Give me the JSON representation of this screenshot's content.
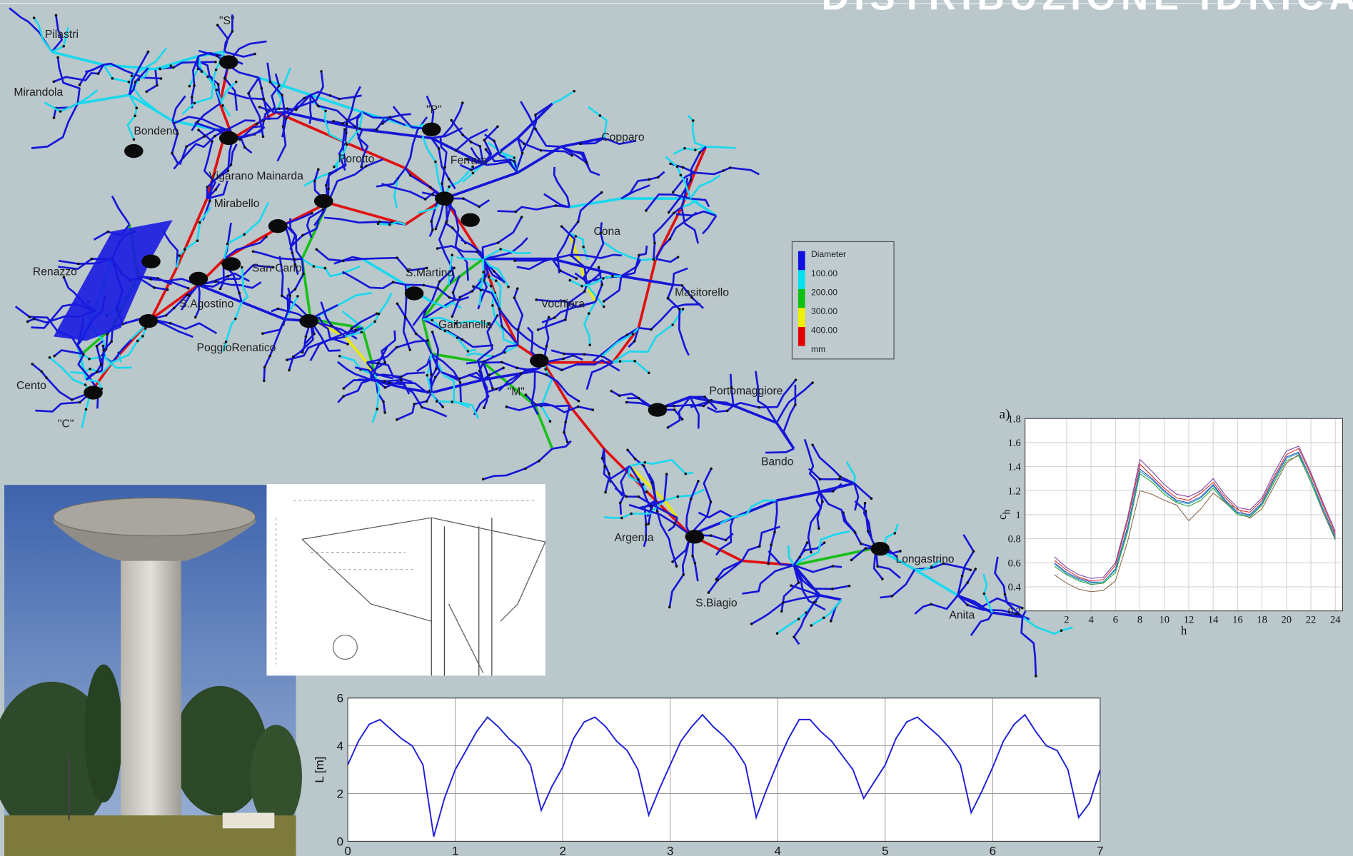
{
  "title": "DISTRIBUZIONE IDRICA",
  "map": {
    "labels": [
      "Pilastri",
      "\"S\"",
      "Mirandola",
      "Bondeno",
      "\"P\"",
      "Copparo",
      "Porotto",
      "Ferrara",
      "Vigarano Mainarda",
      "Mirabello",
      "Cona",
      "Renazzo",
      "San Carlo",
      "S.Martino",
      "Masitorello",
      "S.Agostino",
      "Vochiera",
      "Gaibanella",
      "PoggioRenatico",
      "Cento",
      "\"M\"",
      "Portomaggiore",
      "\"C\"",
      "Bando",
      "Argenta",
      "Longastrino",
      "S.Biagio",
      "Anita"
    ],
    "legend": {
      "title": "Diameter",
      "items": [
        "100.00",
        "200.00",
        "300.00",
        "400.00"
      ],
      "unit": "mm",
      "colors": [
        "#1010e0",
        "#00e0f0",
        "#10c010",
        "#f0f000",
        "#e00000"
      ]
    }
  },
  "chart_data": [
    {
      "type": "line",
      "panel_label": "a)",
      "xlabel": "h",
      "ylabel": {
        "text": "c",
        "subscript": "h"
      },
      "x": [
        1,
        2,
        3,
        4,
        5,
        6,
        7,
        8,
        9,
        10,
        11,
        12,
        13,
        14,
        15,
        16,
        17,
        18,
        19,
        20,
        21,
        22,
        23,
        24
      ],
      "series": [
        {
          "color": "#3050c0",
          "values": [
            0.6,
            0.52,
            0.47,
            0.44,
            0.44,
            0.55,
            0.9,
            1.38,
            1.3,
            1.2,
            1.12,
            1.1,
            1.15,
            1.25,
            1.12,
            1.02,
            1.0,
            1.1,
            1.3,
            1.48,
            1.52,
            1.3,
            1.05,
            0.82
          ]
        },
        {
          "color": "#d03030",
          "values": [
            0.62,
            0.54,
            0.48,
            0.45,
            0.46,
            0.58,
            0.95,
            1.42,
            1.32,
            1.22,
            1.14,
            1.12,
            1.18,
            1.27,
            1.14,
            1.04,
            1.02,
            1.12,
            1.32,
            1.5,
            1.55,
            1.33,
            1.08,
            0.84
          ]
        },
        {
          "color": "#30a040",
          "values": [
            0.57,
            0.5,
            0.45,
            0.42,
            0.43,
            0.52,
            0.86,
            1.34,
            1.27,
            1.17,
            1.1,
            1.07,
            1.12,
            1.22,
            1.1,
            1.0,
            0.98,
            1.08,
            1.27,
            1.45,
            1.49,
            1.27,
            1.02,
            0.79
          ]
        },
        {
          "color": "#8a6a50",
          "values": [
            0.5,
            0.43,
            0.38,
            0.36,
            0.37,
            0.45,
            0.78,
            1.2,
            1.17,
            1.12,
            1.08,
            0.95,
            1.05,
            1.18,
            1.1,
            1.05,
            0.97,
            1.05,
            1.24,
            1.43,
            1.5,
            1.3,
            1.02,
            0.8
          ]
        },
        {
          "color": "#8040a0",
          "values": [
            0.65,
            0.56,
            0.5,
            0.47,
            0.48,
            0.6,
            0.98,
            1.46,
            1.36,
            1.25,
            1.17,
            1.15,
            1.2,
            1.3,
            1.16,
            1.06,
            1.04,
            1.14,
            1.35,
            1.53,
            1.57,
            1.35,
            1.1,
            0.86
          ]
        },
        {
          "color": "#20a0b0",
          "values": [
            0.59,
            0.51,
            0.46,
            0.43,
            0.44,
            0.54,
            0.88,
            1.36,
            1.29,
            1.19,
            1.11,
            1.09,
            1.14,
            1.24,
            1.11,
            1.01,
            0.99,
            1.09,
            1.29,
            1.47,
            1.51,
            1.29,
            1.04,
            0.81
          ]
        }
      ],
      "xlim": [
        -1.4,
        24.6
      ],
      "ylim": [
        0.2,
        1.8
      ],
      "xticks": [
        2,
        4,
        6,
        8,
        10,
        12,
        14,
        16,
        18,
        20,
        22,
        24
      ],
      "yticks": [
        0.2,
        0.4,
        0.6,
        0.8,
        1,
        1.2,
        1.4,
        1.6,
        1.8
      ],
      "grid": true
    },
    {
      "type": "line",
      "ylabel": "L [m]",
      "x": [
        0,
        0.1,
        0.2,
        0.3,
        0.4,
        0.5,
        0.6,
        0.7,
        0.8,
        0.9,
        1.0,
        1.1,
        1.2,
        1.3,
        1.4,
        1.5,
        1.6,
        1.7,
        1.8,
        1.9,
        2.0,
        2.1,
        2.2,
        2.3,
        2.4,
        2.5,
        2.6,
        2.7,
        2.8,
        2.9,
        3.0,
        3.1,
        3.2,
        3.3,
        3.4,
        3.5,
        3.6,
        3.7,
        3.8,
        3.9,
        4.0,
        4.1,
        4.2,
        4.3,
        4.4,
        4.5,
        4.6,
        4.7,
        4.8,
        4.9,
        5.0,
        5.1,
        5.2,
        5.3,
        5.4,
        5.5,
        5.6,
        5.7,
        5.8,
        5.9,
        6.0,
        6.1,
        6.2,
        6.3,
        6.4,
        6.5,
        6.6,
        6.7,
        6.8,
        6.9,
        7.0
      ],
      "series": [
        {
          "color": "#1f1fd8",
          "values": [
            3.2,
            4.2,
            4.9,
            5.1,
            4.7,
            4.3,
            4.0,
            3.2,
            0.2,
            1.8,
            3.0,
            3.8,
            4.6,
            5.2,
            4.8,
            4.3,
            3.9,
            3.2,
            1.3,
            2.3,
            3.1,
            4.3,
            5.0,
            5.2,
            4.8,
            4.2,
            3.8,
            3.0,
            1.1,
            2.2,
            3.2,
            4.2,
            4.8,
            5.3,
            4.8,
            4.4,
            3.9,
            3.2,
            1.0,
            2.2,
            3.3,
            4.3,
            5.1,
            5.1,
            4.6,
            4.2,
            3.6,
            3.0,
            1.8,
            2.5,
            3.2,
            4.3,
            5.0,
            5.2,
            4.8,
            4.4,
            3.9,
            3.2,
            1.2,
            2.1,
            3.1,
            4.2,
            4.9,
            5.3,
            4.6,
            4.0,
            3.8,
            3.0,
            1.0,
            1.6,
            3.0
          ]
        }
      ],
      "xlim": [
        0,
        7
      ],
      "ylim": [
        0,
        6
      ],
      "xticks": [
        0,
        1,
        2,
        3,
        4,
        5,
        6,
        7
      ],
      "yticks": [
        0,
        2,
        4,
        6
      ],
      "grid": true
    }
  ]
}
